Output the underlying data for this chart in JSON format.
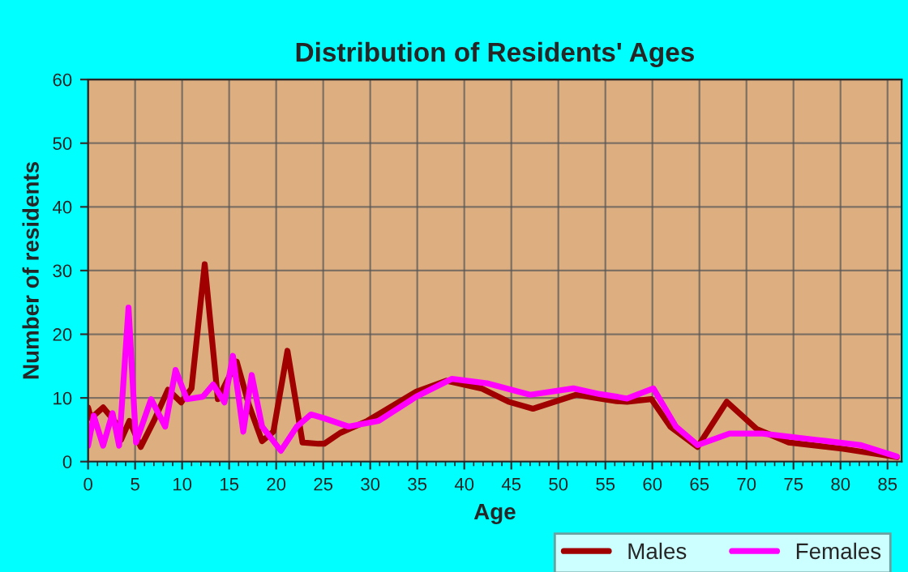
{
  "chart_data": {
    "type": "line",
    "title": "Distribution of Residents' Ages",
    "xlabel": "Age",
    "ylabel": "Number of residents",
    "xlim": [
      0,
      86.5
    ],
    "xticks": [
      0,
      5,
      10,
      15,
      20,
      25,
      30,
      35,
      40,
      45,
      50,
      55,
      60,
      65,
      70,
      75,
      80,
      85
    ],
    "ylim": [
      0,
      60
    ],
    "yticks": [
      0,
      10,
      20,
      30,
      40,
      50,
      60
    ],
    "grid": true,
    "legend": "bottom",
    "marker": "none",
    "line_style": "solid",
    "series": [
      {
        "name": "Males",
        "color": "#a00000",
        "x": [
          0,
          0.3,
          1.6,
          3.3,
          3.5,
          4.4,
          5.6,
          7,
          8.5,
          9.9,
          11,
          12.4,
          13.8,
          15.8,
          17.1,
          18.5,
          19.7,
          21.2,
          22.8,
          24.5,
          25.1,
          26.8,
          29.7,
          34.9,
          38.1,
          41.8,
          44.7,
          47.3,
          51.9,
          54.4,
          56.2,
          57.3,
          59.9,
          61.9,
          64.8,
          67.9,
          71.1,
          74.5,
          80.3,
          86
        ],
        "values": [
          8.5,
          6.8,
          8.5,
          5.5,
          3.4,
          6.4,
          2.3,
          6.4,
          11.3,
          9.3,
          11.5,
          31,
          9.8,
          15.7,
          8.9,
          3.2,
          4.7,
          17.4,
          3,
          2.8,
          2.8,
          4.5,
          6.4,
          11,
          12.7,
          11.5,
          9.4,
          8.3,
          10.5,
          9.9,
          9.5,
          9.4,
          9.8,
          5.5,
          2.3,
          9.4,
          5.1,
          3,
          2,
          0.7
        ]
      },
      {
        "name": "Females",
        "color": "#ff00ff",
        "x": [
          0,
          0.6,
          1.6,
          2.6,
          3.3,
          4.3,
          5.1,
          6.7,
          8.2,
          9.3,
          10.5,
          12.2,
          13.3,
          14.5,
          15.4,
          16.5,
          17.4,
          18.5,
          20.5,
          22.2,
          23.7,
          25.1,
          27.7,
          30.9,
          34.9,
          38.7,
          42.4,
          47,
          51.6,
          54.4,
          56.2,
          57.3,
          60.1,
          62.5,
          64.8,
          68.2,
          71.7,
          77.5,
          82.1,
          86
        ],
        "values": [
          2.5,
          7.2,
          2.5,
          7.6,
          2.5,
          24.2,
          3,
          9.8,
          5.5,
          14.4,
          9.8,
          10.2,
          12.1,
          9.3,
          16.6,
          4.7,
          13.6,
          5.5,
          1.7,
          5.5,
          7.4,
          6.8,
          5.5,
          6.4,
          10.2,
          13,
          12.3,
          10.5,
          11.5,
          10.6,
          10.2,
          9.9,
          11.5,
          5.5,
          2.6,
          4.4,
          4.4,
          3.4,
          2.6,
          0.8
        ]
      }
    ]
  }
}
